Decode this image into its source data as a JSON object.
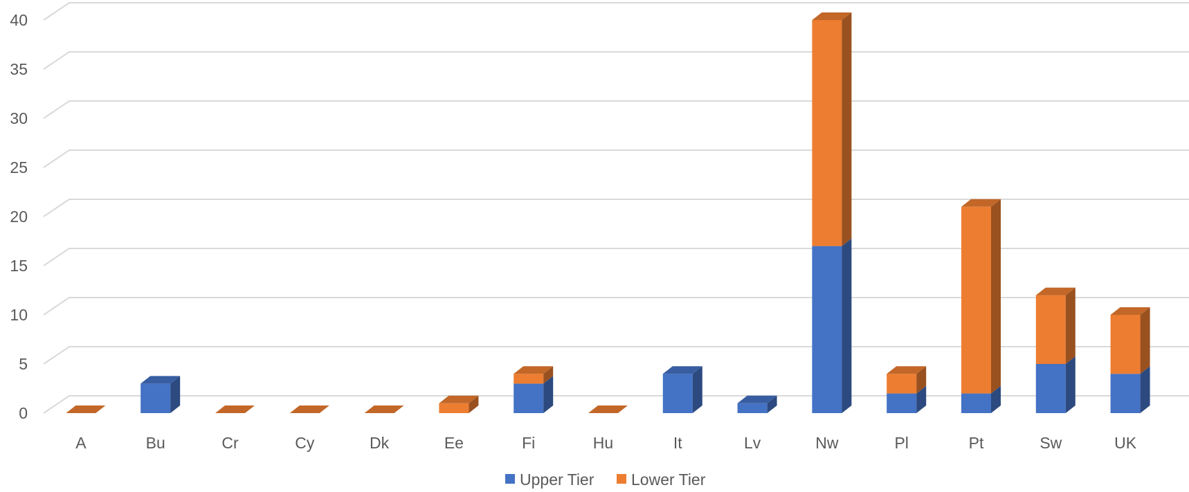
{
  "chart_data": {
    "type": "bar",
    "stacked": true,
    "style": "3d-column",
    "categories": [
      "A",
      "Bu",
      "Cr",
      "Cy",
      "Dk",
      "Ee",
      "Fi",
      "Hu",
      "It",
      "Lv",
      "Nw",
      "Pl",
      "Pt",
      "Sw",
      "UK"
    ],
    "series": [
      {
        "name": "Upper Tier",
        "color": "#4472C4",
        "values": [
          0,
          3,
          0,
          0,
          0,
          0,
          3,
          0,
          4,
          1,
          17,
          2,
          2,
          5,
          4
        ]
      },
      {
        "name": "Lower Tier",
        "color": "#ED7D31",
        "values": [
          0,
          0,
          0,
          0,
          0,
          1,
          1,
          0,
          0,
          0,
          23,
          2,
          19,
          7,
          6
        ]
      }
    ],
    "title": "",
    "xlabel": "",
    "ylabel": "",
    "ylim": [
      0,
      40
    ],
    "yticks": [
      "0",
      "5",
      "10",
      "15",
      "20",
      "25",
      "30",
      "35",
      "40"
    ],
    "grid": true,
    "legend": "bottom"
  }
}
